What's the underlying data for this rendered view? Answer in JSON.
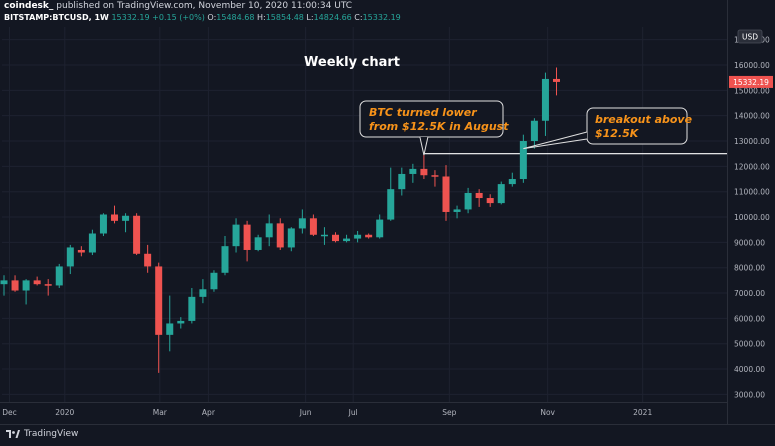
{
  "header": {
    "user": "coindesk_",
    "published": "published on TradingView.com, November 10, 2020 11:00:34 UTC"
  },
  "ohlc": {
    "symbol": "BITSTAMP:BTCUSD, 1W",
    "last": "15332.19",
    "change": "+0.15 (+0%)",
    "o_label": "O:",
    "o": "15484.68",
    "h_label": "H:",
    "h": "15854.48",
    "l_label": "L:",
    "l": "14824.66",
    "c_label": "C:",
    "c": "15332.19"
  },
  "footer": {
    "brand": "TradingView"
  },
  "colors": {
    "up": "#26a69a",
    "down": "#ef5350",
    "annotation": "#f7931a",
    "background": "#131722"
  },
  "chart_data": {
    "type": "candlestick",
    "title": "Weekly chart",
    "currency": "USD",
    "last_price_label": "15332.19",
    "ylim": [
      2700,
      17500
    ],
    "y_ticks": [
      3000,
      4000,
      5000,
      6000,
      7000,
      8000,
      9000,
      10000,
      11000,
      12000,
      13000,
      14000,
      15000,
      16000,
      17000
    ],
    "y_tick_labels": [
      "3000.00",
      "4000.00",
      "5000.00",
      "6000.00",
      "7000.00",
      "8000.00",
      "9000.00",
      "10000.00",
      "11000.00",
      "12000.00",
      "13000.00",
      "14000.00",
      "15000.00",
      "16000.00",
      "17000.00"
    ],
    "x_ticks": [
      {
        "label": "Dec",
        "index": 0.5
      },
      {
        "label": "2020",
        "index": 5.5
      },
      {
        "label": "Mar",
        "index": 14.1
      },
      {
        "label": "Apr",
        "index": 18.5
      },
      {
        "label": "Jun",
        "index": 27.3
      },
      {
        "label": "Jul",
        "index": 31.6
      },
      {
        "label": "Sep",
        "index": 40.3
      },
      {
        "label": "Nov",
        "index": 49.2
      },
      {
        "label": "2021",
        "index": 57.8
      }
    ],
    "candles": [
      {
        "o": 7350,
        "h": 7700,
        "l": 6900,
        "c": 7500
      },
      {
        "o": 7500,
        "h": 7700,
        "l": 7050,
        "c": 7100
      },
      {
        "o": 7100,
        "h": 7550,
        "l": 6550,
        "c": 7500
      },
      {
        "o": 7500,
        "h": 7650,
        "l": 7300,
        "c": 7350
      },
      {
        "o": 7350,
        "h": 7550,
        "l": 6900,
        "c": 7300
      },
      {
        "o": 7300,
        "h": 8150,
        "l": 7200,
        "c": 8050
      },
      {
        "o": 8050,
        "h": 8900,
        "l": 7750,
        "c": 8800
      },
      {
        "o": 8700,
        "h": 8850,
        "l": 8450,
        "c": 8600
      },
      {
        "o": 8600,
        "h": 9500,
        "l": 8500,
        "c": 9350
      },
      {
        "o": 9350,
        "h": 10150,
        "l": 9250,
        "c": 10100
      },
      {
        "o": 10100,
        "h": 10450,
        "l": 9750,
        "c": 9850
      },
      {
        "o": 9850,
        "h": 10150,
        "l": 9400,
        "c": 10050
      },
      {
        "o": 10050,
        "h": 10150,
        "l": 8500,
        "c": 8550
      },
      {
        "o": 8550,
        "h": 8900,
        "l": 7800,
        "c": 8050
      },
      {
        "o": 8050,
        "h": 8200,
        "l": 3850,
        "c": 5350
      },
      {
        "o": 5350,
        "h": 6900,
        "l": 4700,
        "c": 5800
      },
      {
        "o": 5800,
        "h": 6050,
        "l": 5600,
        "c": 5900
      },
      {
        "o": 5900,
        "h": 7200,
        "l": 5800,
        "c": 6850
      },
      {
        "o": 6850,
        "h": 7550,
        "l": 6600,
        "c": 7150
      },
      {
        "o": 7150,
        "h": 7900,
        "l": 7050,
        "c": 7800
      },
      {
        "o": 7800,
        "h": 9250,
        "l": 7700,
        "c": 8850
      },
      {
        "o": 8850,
        "h": 9950,
        "l": 8600,
        "c": 9700
      },
      {
        "o": 9700,
        "h": 9850,
        "l": 8250,
        "c": 8700
      },
      {
        "o": 8700,
        "h": 9300,
        "l": 8650,
        "c": 9200
      },
      {
        "o": 9200,
        "h": 10100,
        "l": 8850,
        "c": 9750
      },
      {
        "o": 9750,
        "h": 9950,
        "l": 8700,
        "c": 8800
      },
      {
        "o": 8800,
        "h": 9600,
        "l": 8650,
        "c": 9550
      },
      {
        "o": 9550,
        "h": 10300,
        "l": 9350,
        "c": 9950
      },
      {
        "o": 9950,
        "h": 10100,
        "l": 9250,
        "c": 9300
      },
      {
        "o": 9300,
        "h": 9600,
        "l": 8900,
        "c": 9300
      },
      {
        "o": 9300,
        "h": 9400,
        "l": 9000,
        "c": 9050
      },
      {
        "o": 9050,
        "h": 9300,
        "l": 9000,
        "c": 9150
      },
      {
        "o": 9150,
        "h": 9450,
        "l": 9000,
        "c": 9300
      },
      {
        "o": 9300,
        "h": 9350,
        "l": 9150,
        "c": 9200
      },
      {
        "o": 9200,
        "h": 10100,
        "l": 9150,
        "c": 9900
      },
      {
        "o": 9900,
        "h": 11950,
        "l": 9850,
        "c": 11100
      },
      {
        "o": 11100,
        "h": 11950,
        "l": 10850,
        "c": 11700
      },
      {
        "o": 11700,
        "h": 12100,
        "l": 11350,
        "c": 11900
      },
      {
        "o": 11900,
        "h": 12450,
        "l": 11500,
        "c": 11650
      },
      {
        "o": 11650,
        "h": 11850,
        "l": 11200,
        "c": 11600
      },
      {
        "o": 11600,
        "h": 12050,
        "l": 9850,
        "c": 10200
      },
      {
        "o": 10200,
        "h": 10450,
        "l": 9950,
        "c": 10300
      },
      {
        "o": 10300,
        "h": 11150,
        "l": 10150,
        "c": 10950
      },
      {
        "o": 10950,
        "h": 11100,
        "l": 10400,
        "c": 10750
      },
      {
        "o": 10750,
        "h": 10900,
        "l": 10400,
        "c": 10550
      },
      {
        "o": 10550,
        "h": 11400,
        "l": 10500,
        "c": 11300
      },
      {
        "o": 11300,
        "h": 11750,
        "l": 11200,
        "c": 11500
      },
      {
        "o": 11500,
        "h": 13250,
        "l": 11350,
        "c": 13000
      },
      {
        "o": 13000,
        "h": 13900,
        "l": 12700,
        "c": 13800
      },
      {
        "o": 13800,
        "h": 15700,
        "l": 13200,
        "c": 15450
      },
      {
        "o": 15450,
        "h": 15900,
        "l": 14800,
        "c": 15332
      }
    ],
    "annotations": [
      {
        "text_lines": [
          "BTC turned lower",
          "from $12.5K in August"
        ],
        "pointer_index": 38,
        "pointer_price": 12450
      },
      {
        "text_lines": [
          "breakout above",
          "$12.5K"
        ],
        "pointer_index": 47,
        "pointer_price": 12700
      }
    ],
    "horizontal_line": {
      "price": 12500,
      "start_index": 38
    }
  }
}
